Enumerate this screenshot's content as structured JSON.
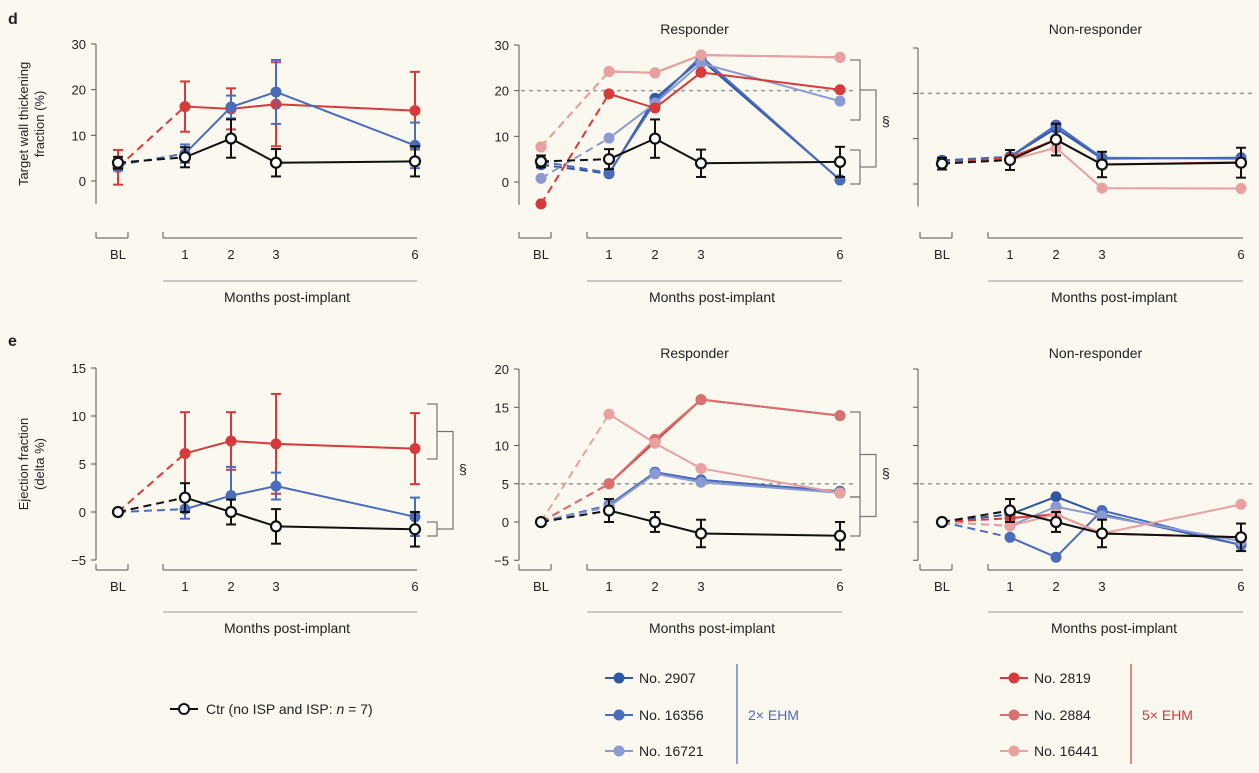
{
  "colors": {
    "ctr": "#111111",
    "c2907": "#2e57a8",
    "c16356": "#4a6cbc",
    "c16721": "#8a9bd4",
    "c2819": "#d63a3a",
    "c2884": "#d97070",
    "c16441": "#e8a0a0",
    "ehm2": "#4a6cbc",
    "ehm5": "#d63a3a",
    "dashed": "#999999"
  },
  "section_labels": [
    "d",
    "e"
  ],
  "panel_titles": {
    "responder": "Responder",
    "nonresponder": "Non-responder"
  },
  "x_categories": [
    "BL",
    "1",
    "2",
    "3",
    "6"
  ],
  "xlabel": "Months post-implant",
  "section_mark": "§",
  "legend": {
    "ctr_label": "Ctr (no ISP and ISP: ",
    "ctr_italic": "n",
    "ctr_suffix": " = 7)",
    "items": [
      {
        "label": "No. 2907",
        "color_key": "c2907"
      },
      {
        "label": "No. 16356",
        "color_key": "c16356"
      },
      {
        "label": "No. 16721",
        "color_key": "c16721"
      },
      {
        "label": "No. 2819",
        "color_key": "c2819"
      },
      {
        "label": "No. 2884",
        "color_key": "c2884"
      },
      {
        "label": "No. 16441",
        "color_key": "c16441"
      }
    ],
    "group_2x": "2× EHM",
    "group_5x": "5× EHM"
  },
  "chart_data": [
    {
      "id": "d-mean",
      "type": "line",
      "ylabel_lines": [
        "Target wall thickening",
        "fraction (%)"
      ],
      "ylim": [
        -5,
        30
      ],
      "yticks": [
        0,
        10,
        20,
        30
      ],
      "x": [
        "BL",
        "1",
        "2",
        "3",
        "6"
      ],
      "series": [
        {
          "color_key": "c2819",
          "values": [
            3,
            16.3,
            15.8,
            16.8,
            15.4
          ],
          "err": [
            3.8,
            5.5,
            4.5,
            9.2,
            8.5
          ]
        },
        {
          "color_key": "c16356",
          "values": [
            3.5,
            6,
            16.2,
            19.5,
            7.8
          ],
          "err": [
            1.2,
            2,
            2.5,
            7,
            5
          ]
        },
        {
          "color_key": "ctr",
          "values": [
            4,
            5.2,
            9.3,
            4,
            4.3
          ],
          "err": [
            1.3,
            2.2,
            4.2,
            3,
            3.3
          ]
        }
      ]
    },
    {
      "id": "d-responder",
      "type": "line",
      "title": "Responder",
      "ylim": [
        -5,
        30
      ],
      "yticks": [
        0,
        10,
        20,
        30
      ],
      "threshold": 20,
      "x": [
        "BL",
        "1",
        "2",
        "3",
        "6"
      ],
      "series": [
        {
          "name": "No. 2907",
          "color_key": "c2907",
          "values": [
            3.8,
            1.8,
            18.3,
            26.8,
            0.5
          ]
        },
        {
          "name": "No. 16356",
          "color_key": "c16356",
          "values": [
            4.5,
            2,
            17.5,
            27.5,
            0.4
          ]
        },
        {
          "name": "No. 16721",
          "color_key": "c16721",
          "values": [
            0.8,
            9.6,
            17.2,
            26,
            17.7
          ]
        },
        {
          "name": "No. 2819",
          "color_key": "c2819",
          "values": [
            -4.8,
            19.3,
            16.2,
            24,
            20.2
          ]
        },
        {
          "name": "No. 2884",
          "color_key": "c2884",
          "values": [
            7.7,
            24.2,
            23.9,
            27.8,
            27.3
          ]
        },
        {
          "name": "No. 16441",
          "color_key": "c16441",
          "values": [
            7.7,
            24.2,
            23.9,
            27.8,
            27.3
          ]
        },
        {
          "name": "Ctr",
          "color_key": "ctr",
          "values": [
            4.5,
            5,
            9.5,
            4.1,
            4.4
          ],
          "err": [
            1.3,
            2.2,
            4.2,
            3,
            3.3
          ]
        }
      ]
    },
    {
      "id": "d-nonresponder",
      "type": "line",
      "title": "Non-responder",
      "ylim": [
        -5,
        30
      ],
      "threshold": 20,
      "x": [
        "BL",
        "1",
        "2",
        "3",
        "6"
      ],
      "series": [
        {
          "name": "No. 2907",
          "color_key": "c2907",
          "values": [
            5.2,
            6,
            12.3,
            5.6,
            5.8
          ]
        },
        {
          "name": "No. 16356",
          "color_key": "c16356",
          "values": [
            5,
            6,
            13,
            5.8,
            5.6
          ]
        },
        {
          "name": "No. 2819",
          "color_key": "c2819",
          "values": [
            4.5,
            5.8,
            9.8,
            4.3,
            4.8
          ]
        },
        {
          "name": "No. 16441",
          "color_key": "c16441",
          "values": [
            4.5,
            5.3,
            8,
            -0.9,
            -1
          ]
        },
        {
          "name": "Ctr",
          "color_key": "ctr",
          "values": [
            4.5,
            5.3,
            9.8,
            4.3,
            4.7
          ],
          "err": [
            1.3,
            2.2,
            3.5,
            2.8,
            3.3
          ]
        }
      ]
    },
    {
      "id": "e-mean",
      "type": "line",
      "ylabel_lines": [
        "Ejection fraction",
        "(delta %)"
      ],
      "ylim": [
        -5,
        15
      ],
      "yticks": [
        -5,
        0,
        5,
        10,
        15
      ],
      "x": [
        "BL",
        "1",
        "2",
        "3",
        "6"
      ],
      "series": [
        {
          "color_key": "c2819",
          "values": [
            0,
            6.1,
            7.4,
            7.1,
            6.6
          ],
          "err": [
            0,
            4.3,
            3,
            5.2,
            3.7
          ]
        },
        {
          "color_key": "c16356",
          "values": [
            0,
            0.3,
            1.7,
            2.7,
            -0.5
          ],
          "err": [
            0,
            1,
            3,
            1.4,
            2
          ]
        },
        {
          "color_key": "ctr",
          "values": [
            0,
            1.5,
            0,
            -1.5,
            -1.8
          ],
          "err": [
            0,
            1.5,
            1.3,
            1.8,
            1.8
          ]
        }
      ]
    },
    {
      "id": "e-responder",
      "type": "line",
      "title": "Responder",
      "ylim": [
        -5,
        20
      ],
      "yticks": [
        -5,
        0,
        5,
        10,
        15,
        20
      ],
      "threshold": 5,
      "x": [
        "BL",
        "1",
        "2",
        "3",
        "6"
      ],
      "series": [
        {
          "name": "No. 2907",
          "color_key": "c2907",
          "values": [
            0,
            2.2,
            6.5,
            5.5,
            4
          ]
        },
        {
          "name": "No. 16356",
          "color_key": "c16356",
          "values": [
            0,
            2.2,
            6.5,
            5.5,
            3.9
          ]
        },
        {
          "name": "No. 16721",
          "color_key": "c16721",
          "values": [
            0,
            2,
            6.3,
            5.2,
            3.8
          ]
        },
        {
          "name": "No. 2819",
          "color_key": "c2819",
          "values": [
            0,
            5,
            10.5,
            16,
            13.9
          ]
        },
        {
          "name": "No. 2884",
          "color_key": "c2884",
          "values": [
            0,
            5,
            10.8,
            16,
            13.9
          ]
        },
        {
          "name": "No. 16441",
          "color_key": "c16441",
          "values": [
            0,
            14.1,
            10.3,
            7,
            3.8
          ]
        },
        {
          "name": "Ctr",
          "color_key": "ctr",
          "values": [
            0,
            1.5,
            0,
            -1.5,
            -1.8
          ],
          "err": [
            0,
            1.5,
            1.3,
            1.8,
            1.8
          ]
        }
      ]
    },
    {
      "id": "e-nonresponder",
      "type": "line",
      "title": "Non-responder",
      "ylim": [
        -5,
        20
      ],
      "threshold": 5,
      "x": [
        "BL",
        "1",
        "2",
        "3",
        "6"
      ],
      "series": [
        {
          "name": "No. 2907",
          "color_key": "c2907",
          "values": [
            0,
            1,
            3.3,
            1,
            -3
          ]
        },
        {
          "name": "No. 16356",
          "color_key": "c16356",
          "values": [
            0,
            -2,
            -4.6,
            1.5,
            -3
          ]
        },
        {
          "name": "No. 16721",
          "color_key": "c16721",
          "values": [
            0,
            -0.5,
            2,
            0.8,
            -2.5
          ]
        },
        {
          "name": "No. 2819",
          "color_key": "c2819",
          "values": [
            0,
            0.5,
            1,
            -1.5,
            -2
          ]
        },
        {
          "name": "No. 16441",
          "color_key": "c16441",
          "values": [
            0,
            -0.5,
            1,
            -1.5,
            2.3
          ]
        },
        {
          "name": "Ctr",
          "color_key": "ctr",
          "values": [
            0,
            1.5,
            0,
            -1.5,
            -2
          ],
          "err": [
            0,
            1.5,
            1.3,
            1.8,
            1.8
          ]
        }
      ]
    }
  ]
}
